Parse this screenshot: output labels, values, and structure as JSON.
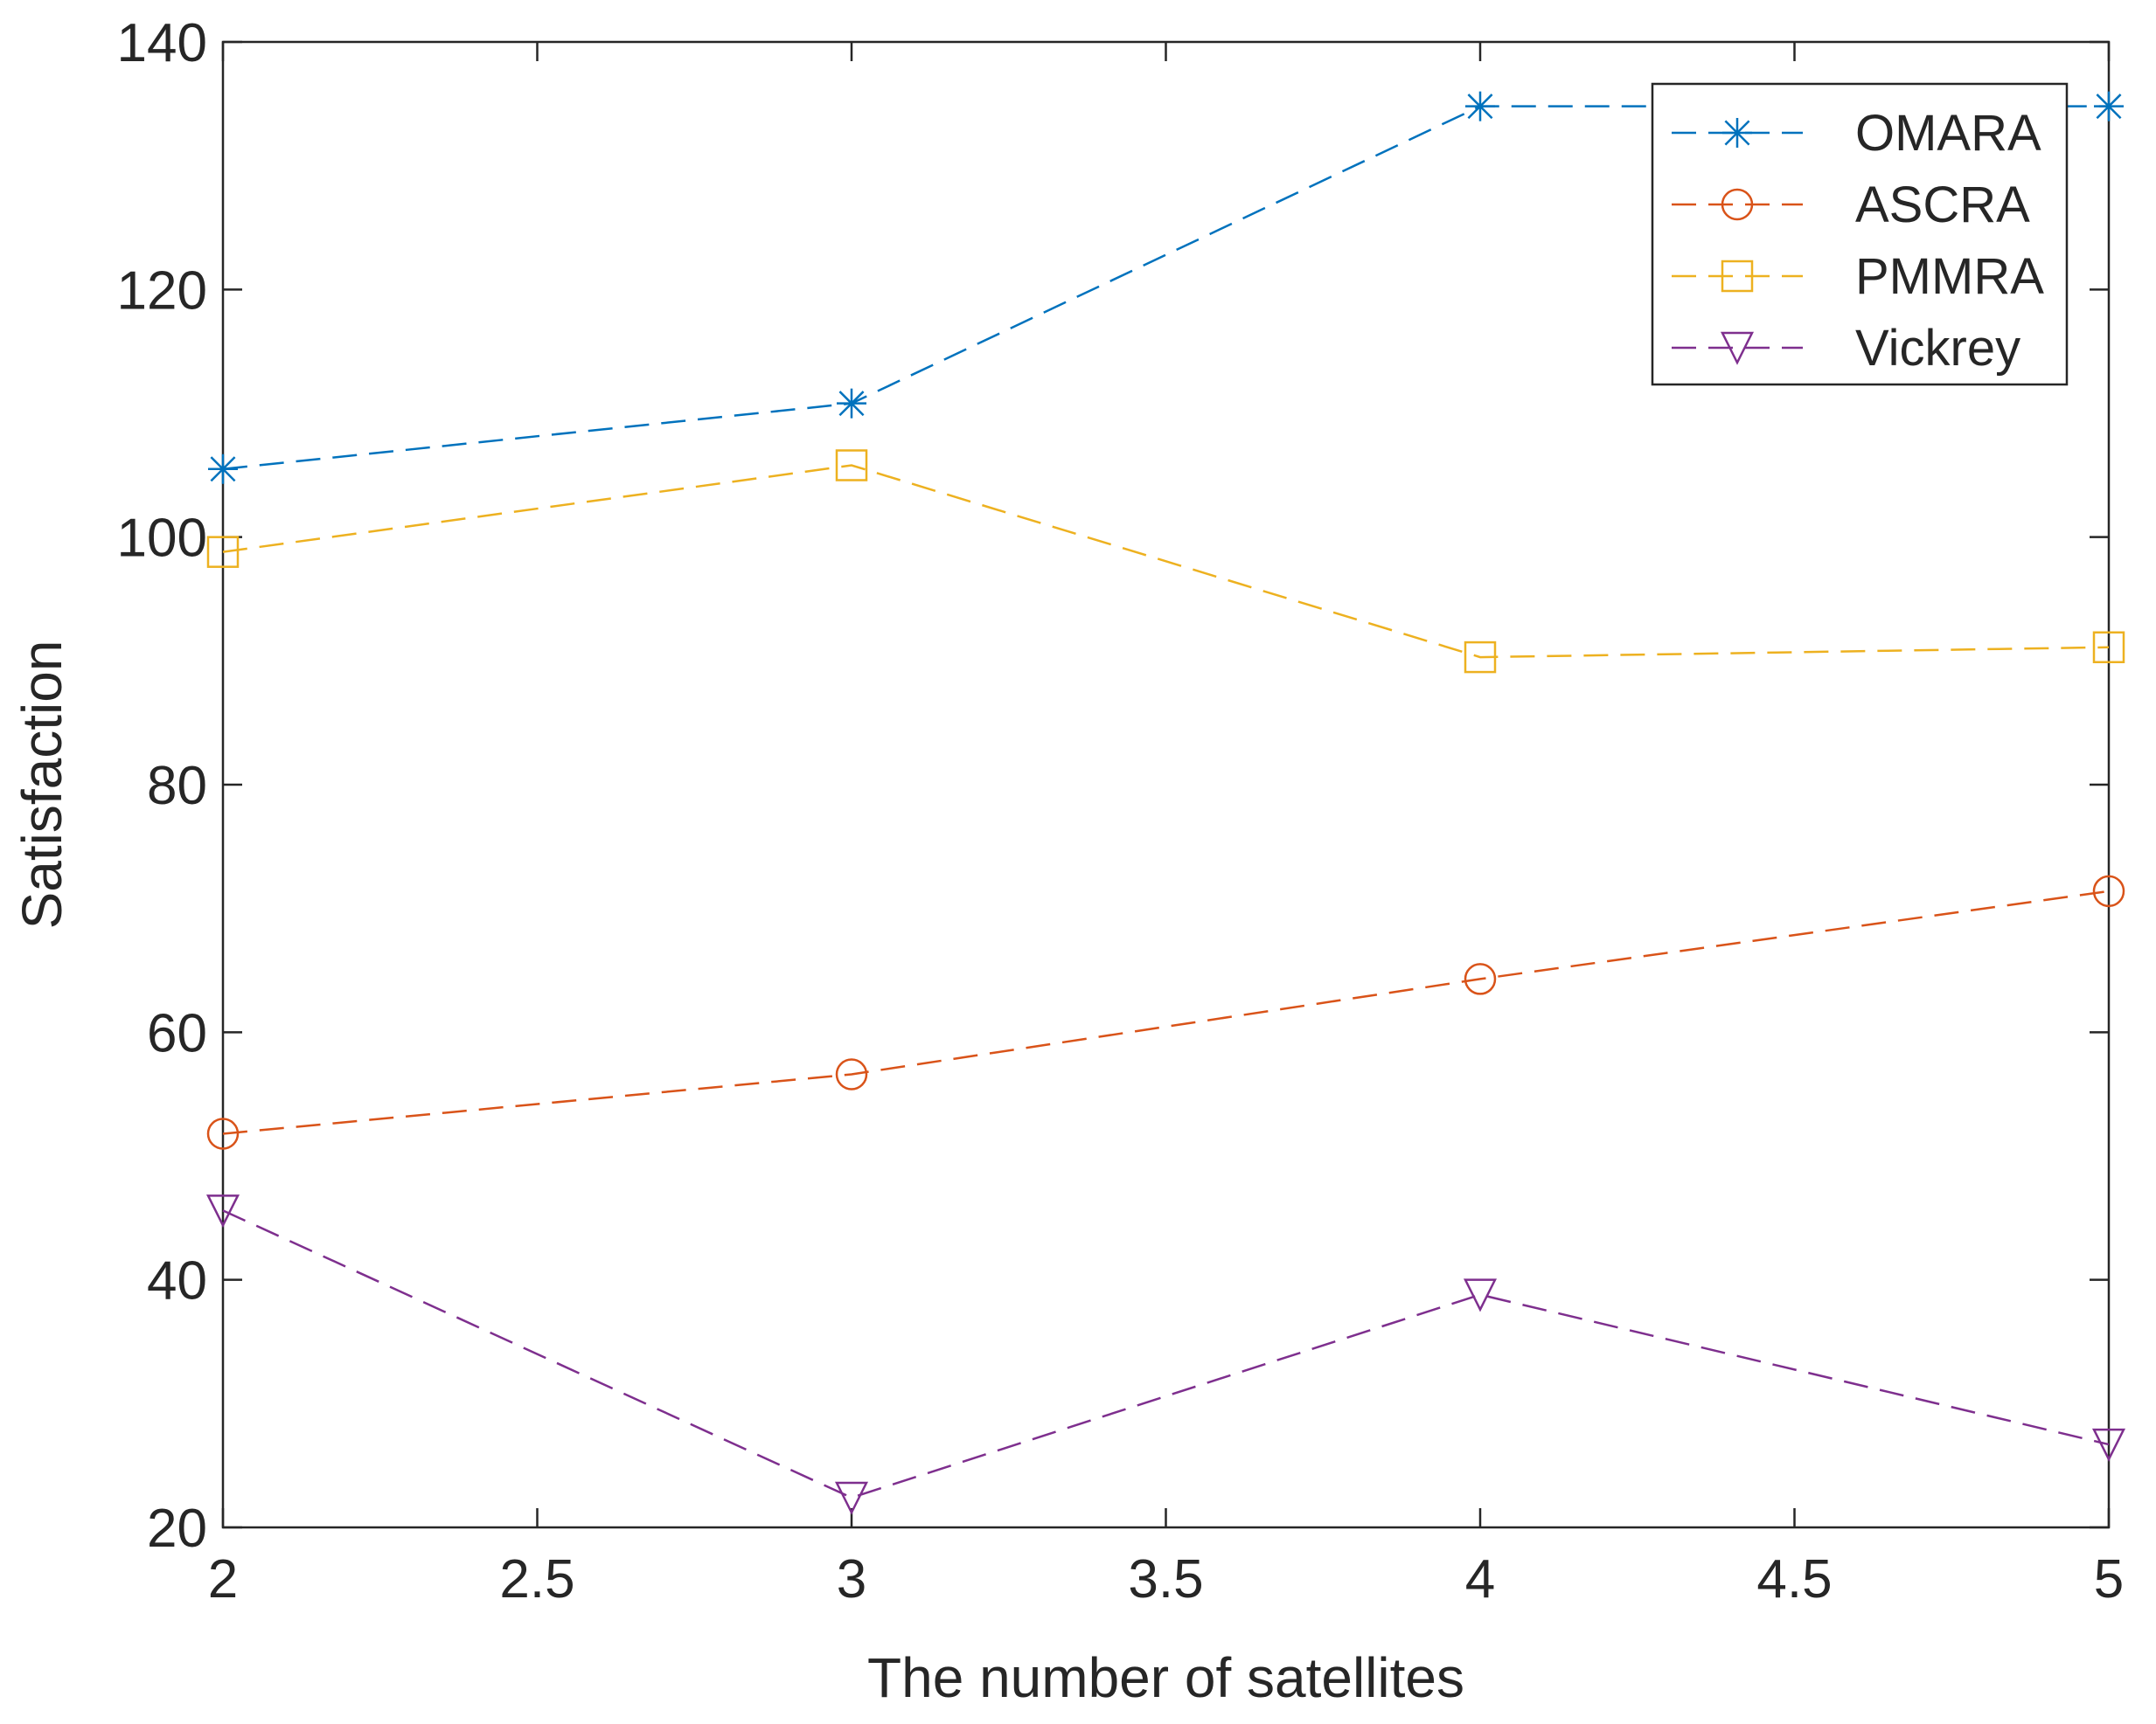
{
  "chart_data": {
    "type": "line",
    "title": "",
    "xlabel": "The number of satellites",
    "ylabel": "Satisfaction",
    "xlim": [
      2,
      5
    ],
    "ylim": [
      20,
      140
    ],
    "xticks": [
      2,
      2.5,
      3,
      3.5,
      4,
      4.5,
      5
    ],
    "xtick_labels": [
      "2",
      "2.5",
      "3",
      "3.5",
      "4",
      "4.5",
      "5"
    ],
    "yticks": [
      20,
      40,
      60,
      80,
      100,
      120,
      140
    ],
    "ytick_labels": [
      "20",
      "40",
      "60",
      "80",
      "100",
      "120",
      "140"
    ],
    "grid": false,
    "legend_position": "top-right",
    "x": [
      2,
      3,
      4,
      5
    ],
    "series": [
      {
        "name": "OMARA",
        "values": [
          105.5,
          110.8,
          134.8,
          134.8
        ],
        "color": "#0072BD",
        "marker": "asterisk"
      },
      {
        "name": "ASCRA",
        "values": [
          51.8,
          56.6,
          64.3,
          71.4
        ],
        "color": "#D95319",
        "marker": "circle"
      },
      {
        "name": "PMMRA",
        "values": [
          98.8,
          105.8,
          90.3,
          91.1
        ],
        "color": "#EDB120",
        "marker": "square"
      },
      {
        "name": "Vickrey",
        "values": [
          45.6,
          22.4,
          38.8,
          26.7
        ],
        "color": "#7E2F8E",
        "marker": "triangle-down"
      }
    ]
  }
}
